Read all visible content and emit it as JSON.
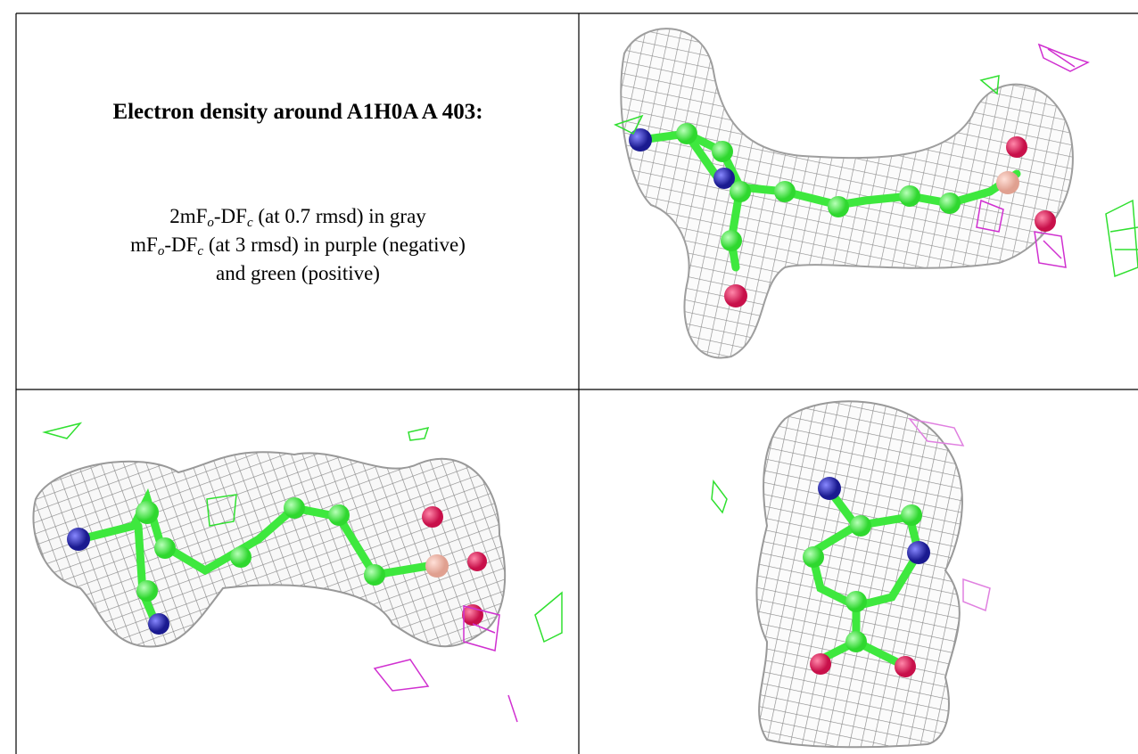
{
  "title": "Electron density around A1H0A A 403:",
  "caption": {
    "line1": [
      "2mF",
      "o",
      "-DF",
      "c",
      " (at 0.7 rmsd) in gray"
    ],
    "line2": [
      "mF",
      "o",
      "-DF",
      "c",
      " (at 3 rmsd) in purple (negative)"
    ],
    "line3": "and green (positive)"
  }
}
